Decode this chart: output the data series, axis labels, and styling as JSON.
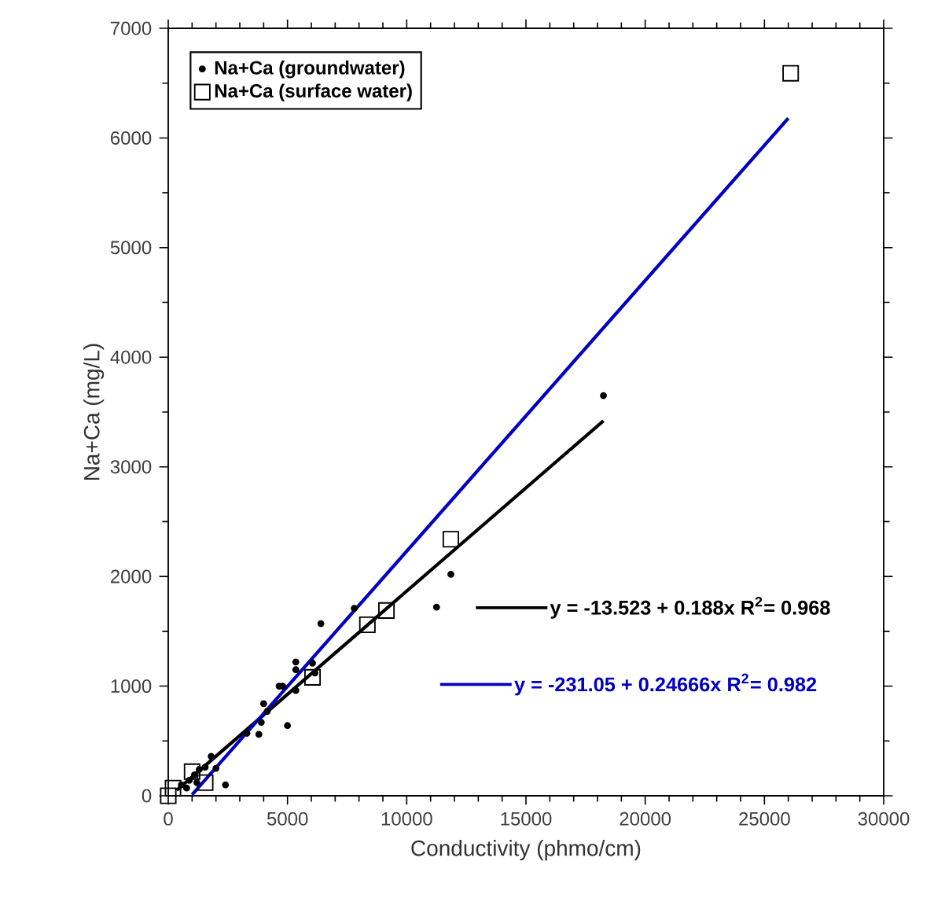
{
  "chart_data": {
    "type": "scatter",
    "xlabel": "Conductivity (phmo/cm)",
    "ylabel": "Na+Ca (mg/L)",
    "xlim": [
      0,
      30000
    ],
    "ylim": [
      0,
      7000
    ],
    "xticks": [
      0,
      5000,
      10000,
      15000,
      20000,
      25000,
      30000
    ],
    "yticks": [
      0,
      1000,
      2000,
      3000,
      4000,
      5000,
      6000,
      7000
    ],
    "grid": false,
    "legend": "top left",
    "series": [
      {
        "name": "Na+Ca (groundwater)",
        "marker": "circle",
        "color": "#000000",
        "x": [
          550,
          770,
          880,
          1100,
          1200,
          1300,
          1550,
          1800,
          2000,
          2400,
          3300,
          3800,
          3900,
          4000,
          4150,
          4650,
          4800,
          5000,
          5350,
          5350,
          5350,
          6050,
          6150,
          6400,
          7800,
          11250,
          11850,
          18250
        ],
        "values": [
          100,
          70,
          140,
          190,
          120,
          240,
          260,
          360,
          250,
          100,
          570,
          560,
          670,
          840,
          770,
          1000,
          1000,
          640,
          960,
          1150,
          1220,
          1210,
          1120,
          1570,
          1710,
          1720,
          2020,
          3650
        ]
      },
      {
        "name": "Na+Ca (surface water)",
        "marker": "square",
        "color": "#000000",
        "x": [
          0,
          200,
          1000,
          1550,
          6050,
          8350,
          9150,
          11850,
          26100
        ],
        "values": [
          0,
          70,
          220,
          120,
          1080,
          1560,
          1690,
          2340,
          6590
        ]
      },
      {
        "name": "y = -13.523 + 0.188x   R$^{2}$= 0.968",
        "type": "line",
        "marker": "none",
        "color": "#000000",
        "x": [
          350,
          18250
        ],
        "values": [
          50,
          3420
        ]
      },
      {
        "name": "y = -231.05 + 0.24666x   R$^{2}$= 0.982",
        "type": "line",
        "marker": "none",
        "color": "#0000c0",
        "x": [
          1000,
          26000
        ],
        "values": [
          10,
          6180
        ]
      }
    ]
  }
}
